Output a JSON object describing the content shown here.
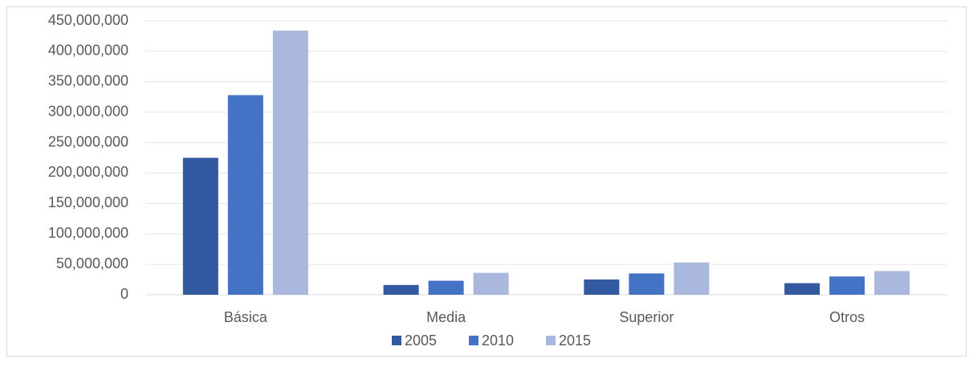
{
  "chart_data": {
    "type": "bar",
    "categories": [
      "Básica",
      "Media",
      "Superior",
      "Otros"
    ],
    "series": [
      {
        "name": "2005",
        "color": "#335aa0",
        "values": [
          225000000,
          16000000,
          25000000,
          19000000
        ]
      },
      {
        "name": "2010",
        "color": "#4472c4",
        "values": [
          328000000,
          23000000,
          35000000,
          30000000
        ]
      },
      {
        "name": "2015",
        "color": "#a9b8dc",
        "values": [
          434000000,
          36000000,
          53000000,
          39000000
        ]
      }
    ],
    "ylim": [
      0,
      450000000
    ],
    "yticks": [
      0,
      {
        "value": 50000000,
        "label": "50,000,000"
      },
      {
        "value": 100000000,
        "label": "100,000,000"
      },
      {
        "value": 150000000,
        "label": "150,000,000"
      },
      {
        "value": 200000000,
        "label": "200,000,000"
      },
      {
        "value": 250000000,
        "label": "250,000,000"
      },
      {
        "value": 300000000,
        "label": "300,000,000"
      },
      {
        "value": 350000000,
        "label": "350,000,000"
      },
      {
        "value": 400000000,
        "label": "400,000,000"
      },
      {
        "value": 450000000,
        "label": "450,000,000"
      }
    ],
    "grid": true,
    "legend": "bottom"
  }
}
